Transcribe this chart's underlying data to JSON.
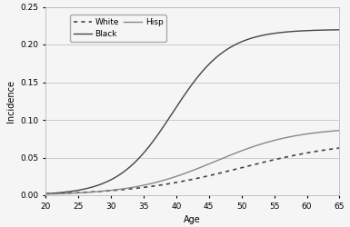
{
  "title": "",
  "xlabel": "Age",
  "ylabel": "Incidence",
  "xlim": [
    20,
    65
  ],
  "ylim": [
    0.0,
    0.25
  ],
  "yticks": [
    0.0,
    0.05,
    0.1,
    0.15,
    0.2,
    0.25
  ],
  "xticks": [
    20,
    25,
    30,
    35,
    40,
    45,
    50,
    55,
    60,
    65
  ],
  "background_color": "#f5f5f5",
  "grid_color": "#bbbbbb",
  "black_curve": {
    "label": "Black",
    "color": "#444444",
    "linestyle": "-",
    "linewidth": 1.0,
    "inflection": 39.5,
    "steepness": 0.24,
    "max_val": 0.22
  },
  "white_curve": {
    "label": "White",
    "color": "#444444",
    "linestyle": ":",
    "linewidth": 1.2,
    "inflection": 50,
    "steepness": 0.12,
    "max_val": 0.073
  },
  "hisp_curve": {
    "label": "Hisp",
    "color": "#888888",
    "linestyle": "-",
    "linewidth": 1.0,
    "inflection": 46,
    "steepness": 0.16,
    "max_val": 0.09
  },
  "legend_fontsize": 6.5,
  "axis_fontsize": 7,
  "tick_fontsize": 6.5
}
